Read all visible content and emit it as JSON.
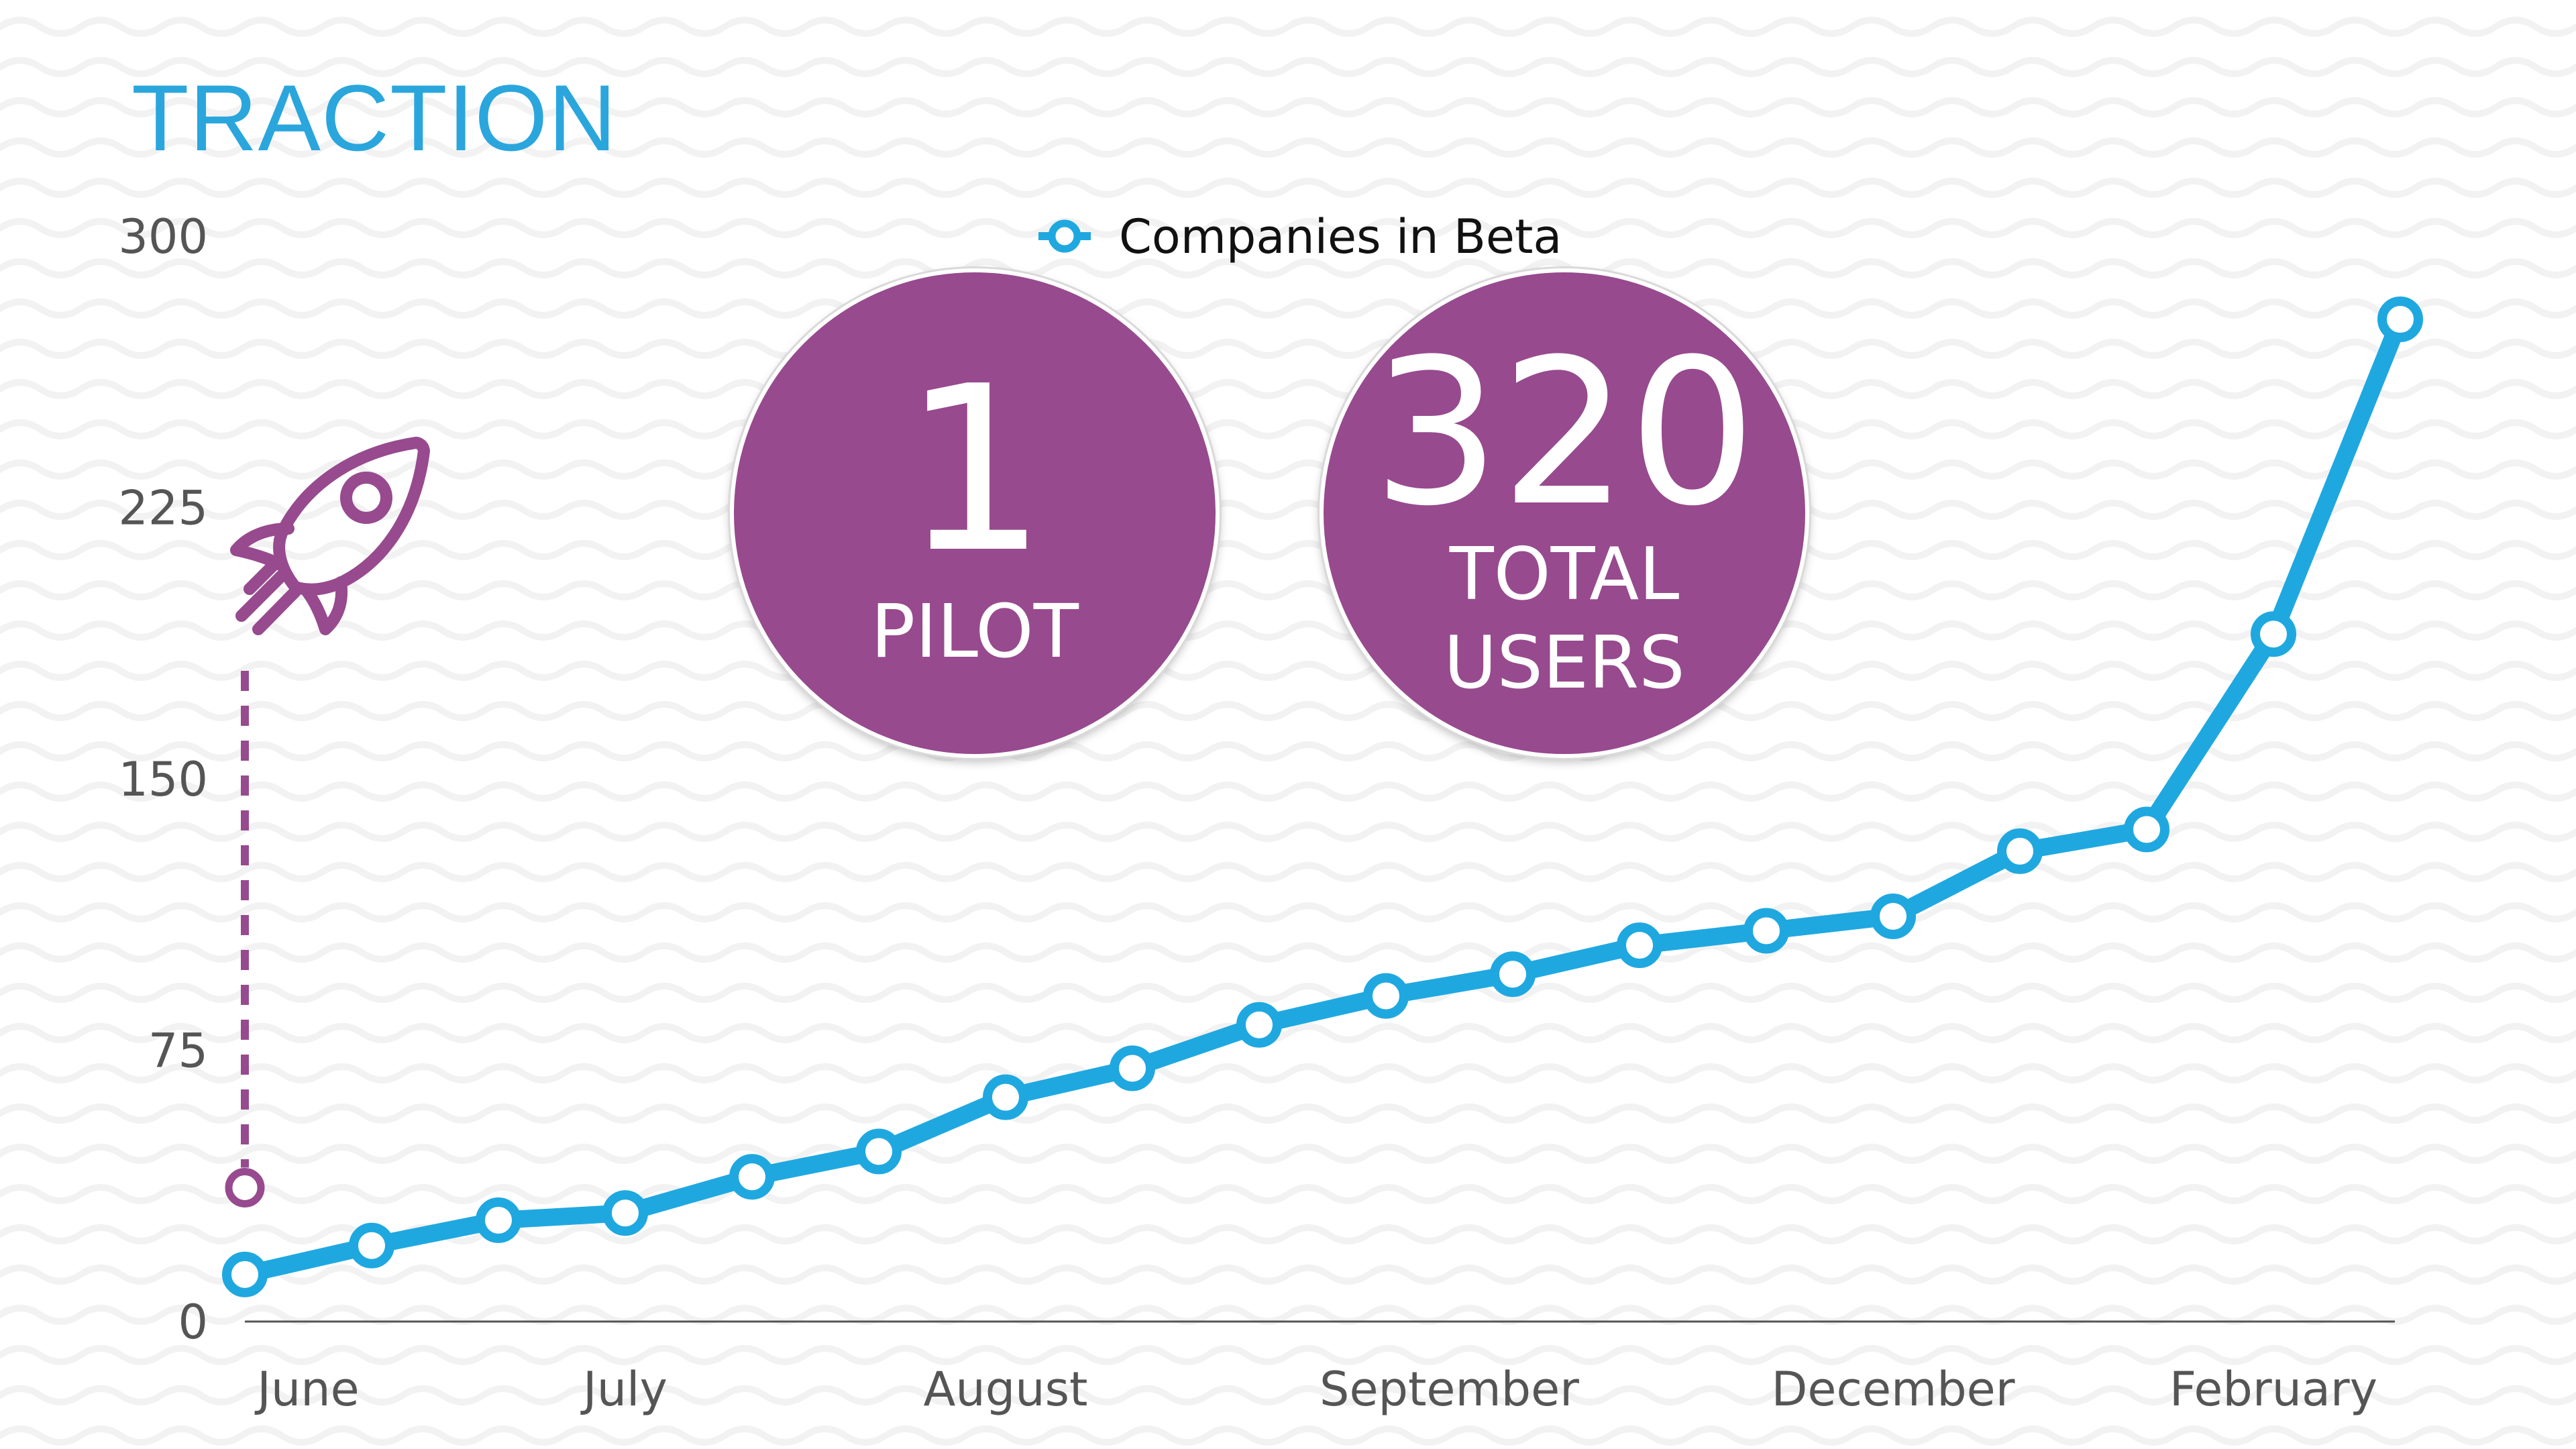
{
  "title": "TRACTION",
  "stats": [
    {
      "number": "1",
      "label": "PILOT"
    },
    {
      "number": "320",
      "label": "TOTAL",
      "label2": "USERS"
    }
  ],
  "colors": {
    "title": "#2aa6dd",
    "line": "#1fa8e0",
    "circle": "#974a8e",
    "rocket": "#974a8e",
    "axis": "#555555"
  },
  "icons": [
    "rocket-icon"
  ],
  "chart_data": {
    "type": "line",
    "ylim": [
      0,
      300
    ],
    "yticks": [
      0,
      75,
      150,
      225,
      300
    ],
    "xtick_labels": [
      "June",
      "July",
      "August",
      "September",
      "December",
      "February"
    ],
    "xtick_positions": [
      0.5,
      3,
      6,
      9.5,
      13,
      16
    ],
    "legend": {
      "label": "Companies in Beta",
      "placement": "top-center"
    },
    "grid": false,
    "series": [
      {
        "name": "Companies in Beta",
        "x": [
          0,
          1,
          2,
          3,
          4,
          5,
          6,
          7,
          8,
          9,
          10,
          11,
          12,
          13,
          14,
          15,
          16,
          17
        ],
        "values": [
          13,
          21,
          28,
          30,
          40,
          47,
          62,
          70,
          82,
          90,
          96,
          104,
          108,
          112,
          130,
          136,
          190,
          277
        ]
      }
    ],
    "annotation": {
      "x": 0,
      "y": 37,
      "style": "dashed",
      "icon": "rocket-icon"
    }
  }
}
